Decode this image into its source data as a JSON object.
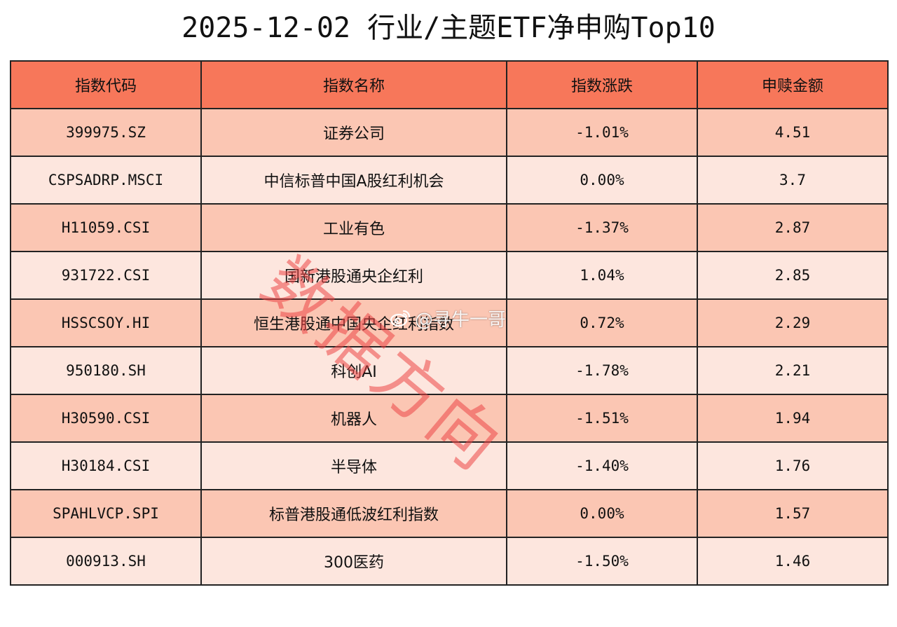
{
  "title": "2025-12-02 行业/主题ETF净申购Top10",
  "columns": [
    "指数代码",
    "指数名称",
    "指数涨跌",
    "申赎金额"
  ],
  "rows": [
    {
      "code": "399975.SZ",
      "name": "证券公司",
      "change": "-1.01%",
      "amount": "4.51"
    },
    {
      "code": "CSPSADRP.MSCI",
      "name": "中信标普中国A股红利机会",
      "change": "0.00%",
      "amount": "3.7"
    },
    {
      "code": "H11059.CSI",
      "name": "工业有色",
      "change": "-1.37%",
      "amount": "2.87"
    },
    {
      "code": "931722.CSI",
      "name": "国新港股通央企红利",
      "change": "1.04%",
      "amount": "2.85"
    },
    {
      "code": "HSSCSOY.HI",
      "name": "恒生港股通中国央企红利指数",
      "change": "0.72%",
      "amount": "2.29"
    },
    {
      "code": "950180.SH",
      "name": "科创AI",
      "change": "-1.78%",
      "amount": "2.21"
    },
    {
      "code": "H30590.CSI",
      "name": "机器人",
      "change": "-1.51%",
      "amount": "1.94"
    },
    {
      "code": "H30184.CSI",
      "name": "半导体",
      "change": "-1.40%",
      "amount": "1.76"
    },
    {
      "code": "SPAHLVCP.SPI",
      "name": "标普港股通低波红利指数",
      "change": "0.00%",
      "amount": "1.57"
    },
    {
      "code": "000913.SH",
      "name": "300医药",
      "change": "-1.50%",
      "amount": "1.46"
    }
  ],
  "watermark": {
    "text": "数据方向",
    "weibo_handle": "@寻牛一哥",
    "color": "#ec4646",
    "icon": "weibo-icon"
  },
  "colors": {
    "header_bg": "#f7775a",
    "row_odd_bg": "#fbc6b3",
    "row_even_bg": "#fde6de",
    "border": "#222222"
  }
}
